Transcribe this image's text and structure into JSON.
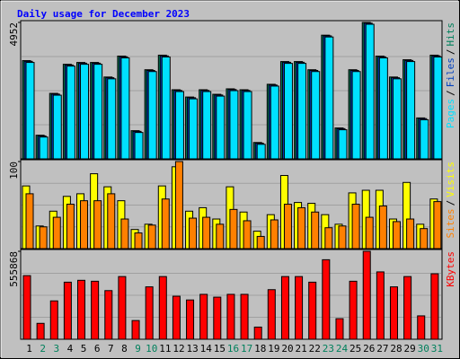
{
  "chart_data": [
    {
      "type": "bar",
      "title": "Daily usage for December 2023",
      "title_color": "#0000ff",
      "ylim": [
        0,
        4952
      ],
      "yticks": [
        4952
      ],
      "legend_separator": "/",
      "series": [
        {
          "name": "Pages",
          "color": "#00e0ff",
          "values": [
            3500,
            792,
            2311,
            3367,
            3433,
            3433,
            2905,
            3665,
            957,
            3169,
            3698,
            2443,
            2179,
            2443,
            2278,
            2476,
            2443,
            528,
            2641,
            3466,
            3466,
            3169,
            4424,
            1056,
            3169,
            4886,
            3665,
            2905,
            3532,
            1420,
            3698
          ]
        },
        {
          "name": "Files",
          "color": "#0040c0",
          "values": [
            3540,
            832,
            2351,
            3407,
            3473,
            3473,
            2945,
            3705,
            997,
            3209,
            3738,
            2483,
            2219,
            2483,
            2318,
            2516,
            2483,
            568,
            2681,
            3506,
            3506,
            3209,
            4464,
            1096,
            3209,
            4926,
            3705,
            2945,
            3572,
            1460,
            3738
          ]
        },
        {
          "name": "Hits",
          "color": "#00805c",
          "values": [
            3566,
            858,
            2377,
            3433,
            3499,
            3499,
            2971,
            3731,
            1023,
            3235,
            3764,
            2509,
            2245,
            2509,
            2344,
            2542,
            2509,
            594,
            2707,
            3532,
            3532,
            3235,
            4490,
            1122,
            3235,
            4952,
            3731,
            2971,
            3598,
            1486,
            3764
          ]
        }
      ]
    },
    {
      "type": "bar",
      "ylim": [
        0,
        100
      ],
      "yticks": [
        100
      ],
      "legend_separator": "/",
      "series": [
        {
          "name": "Sites",
          "color": "#ff8000",
          "values": [
            63,
            25,
            36,
            51,
            55,
            55,
            63,
            34,
            18,
            27,
            57,
            100,
            35,
            36,
            28,
            45,
            32,
            14,
            33,
            51,
            47,
            42,
            24,
            26,
            51,
            36,
            49,
            31,
            34,
            23,
            54
          ]
        },
        {
          "name": "Visits",
          "color": "#ffff00",
          "values": [
            72,
            26,
            43,
            60,
            63,
            86,
            71,
            55,
            22,
            28,
            72,
            94,
            43,
            47,
            34,
            71,
            42,
            20,
            39,
            84,
            53,
            52,
            39,
            28,
            64,
            67,
            67,
            34,
            76,
            28,
            57
          ]
        }
      ]
    },
    {
      "type": "bar",
      "ylim": [
        0,
        555868
      ],
      "yticks": [
        555868
      ],
      "legend_separator": "/",
      "categories": [
        "1",
        "2",
        "3",
        "4",
        "5",
        "6",
        "7",
        "8",
        "9",
        "10",
        "11",
        "12",
        "13",
        "14",
        "15",
        "16",
        "17",
        "18",
        "19",
        "20",
        "21",
        "22",
        "23",
        "24",
        "25",
        "26",
        "27",
        "28",
        "29",
        "30",
        "31"
      ],
      "category_colors": [
        "#000000",
        "#00805c",
        "#00805c",
        "#000000",
        "#000000",
        "#000000",
        "#000000",
        "#000000",
        "#00805c",
        "#00805c",
        "#000000",
        "#000000",
        "#000000",
        "#000000",
        "#000000",
        "#00805c",
        "#00805c",
        "#000000",
        "#000000",
        "#000000",
        "#000000",
        "#000000",
        "#00805c",
        "#00805c",
        "#000000",
        "#000000",
        "#000000",
        "#000000",
        "#000000",
        "#00805c",
        "#00805c"
      ],
      "series": [
        {
          "name": "KBytes",
          "color": "#ff0000",
          "values": [
            402118,
            100530,
            242454,
            360724,
            372551,
            366637,
            307502,
            396205,
            118270,
            331156,
            396205,
            272021,
            248367,
            283848,
            266108,
            283848,
            283848,
            76876,
            313416,
            396205,
            396205,
            360724,
            502648,
            130097,
            366637,
            555868,
            425772,
            331156,
            396205,
            147838,
            413945
          ]
        }
      ]
    }
  ]
}
